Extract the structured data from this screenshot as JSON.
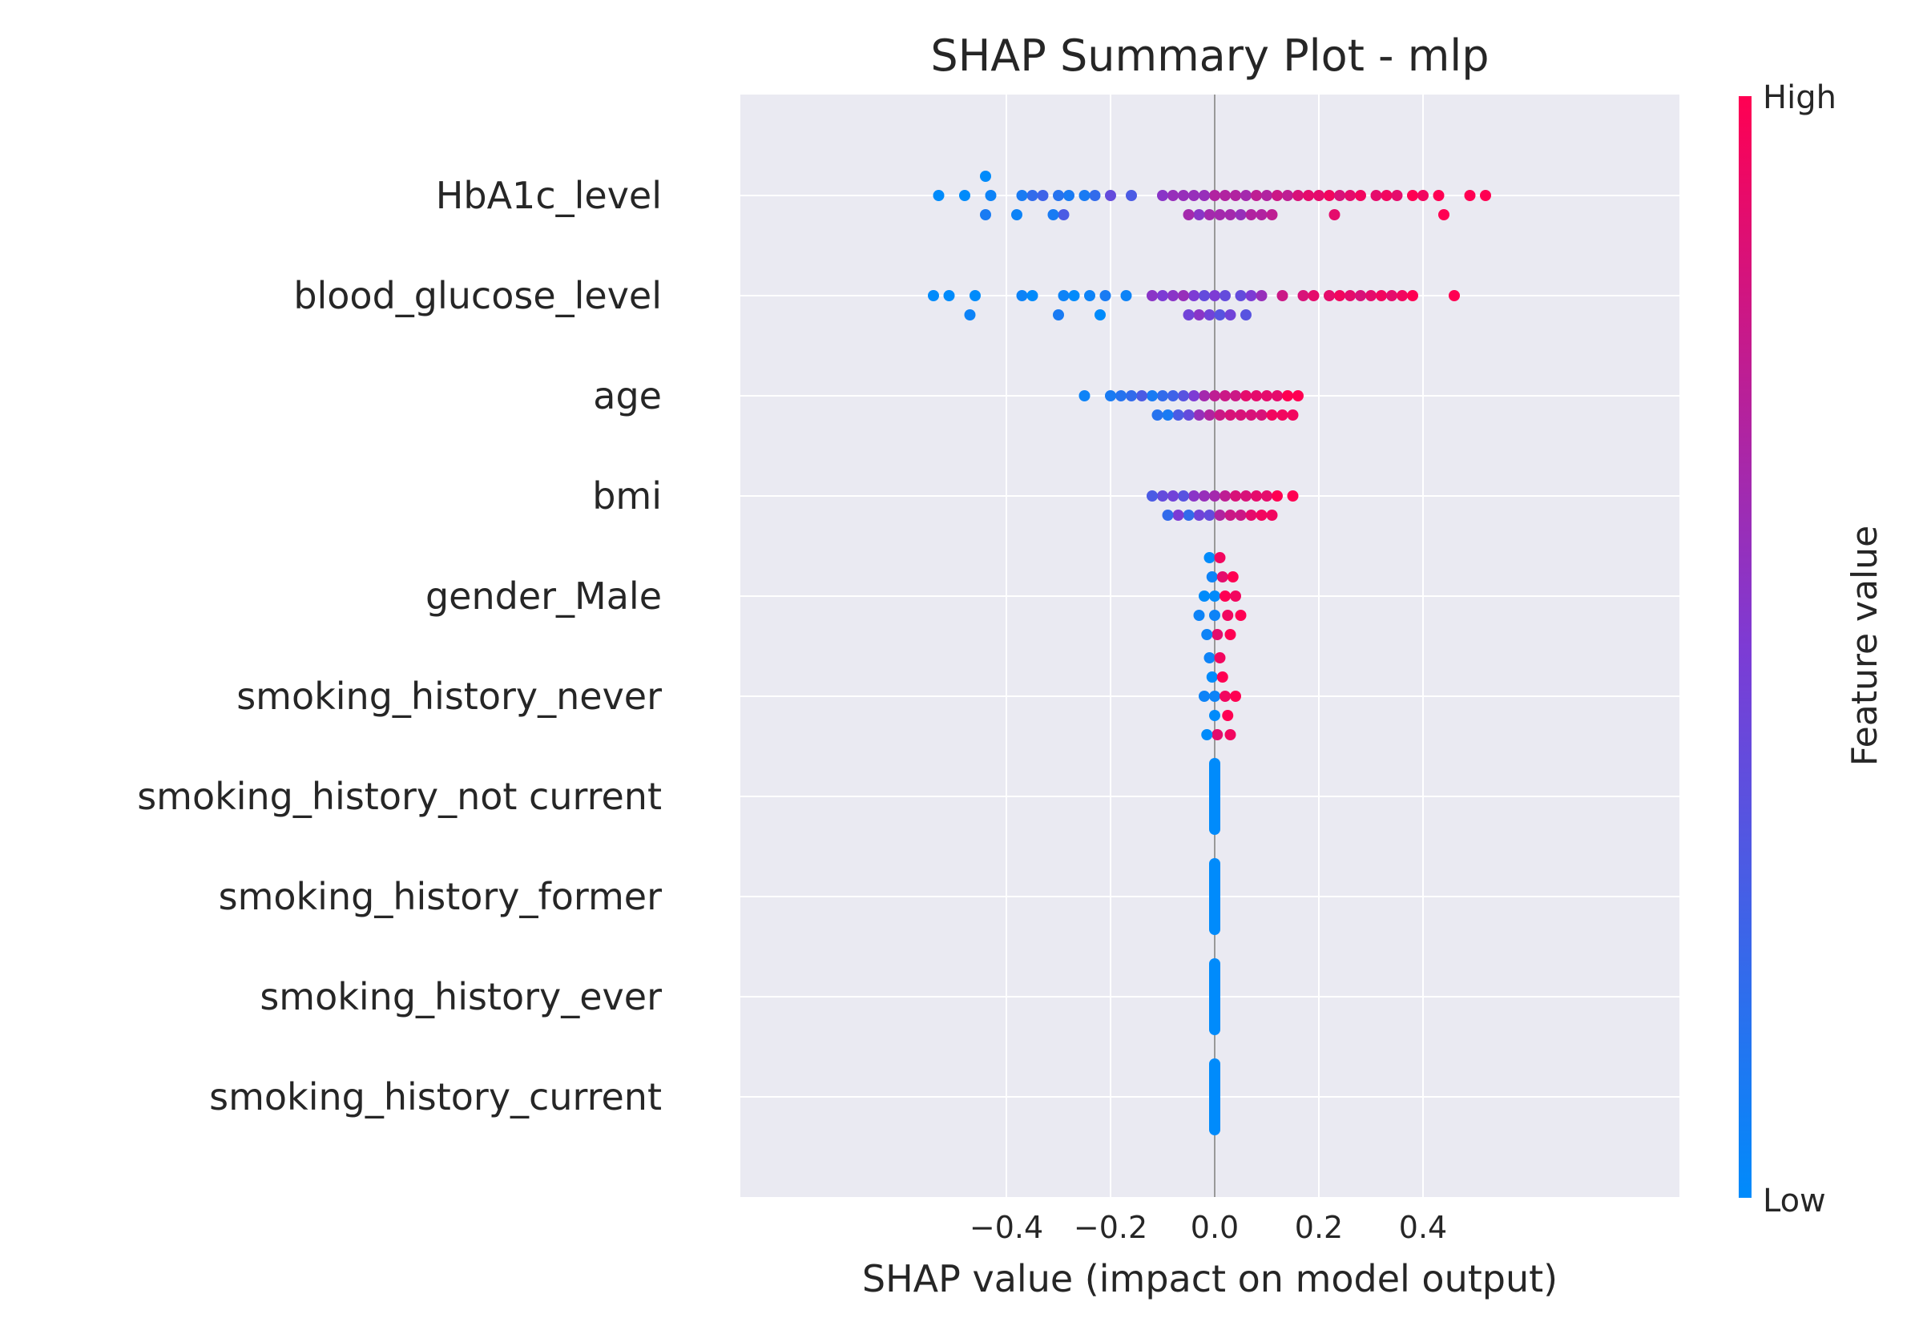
{
  "chart_data": {
    "type": "scatter",
    "subtype": "shap-beeswarm",
    "title": "SHAP Summary Plot - mlp",
    "xlabel": "SHAP value (impact on model output)",
    "ylabel": "",
    "xlim": [
      -0.58,
      0.58
    ],
    "xticks": [
      -0.4,
      -0.2,
      0.0,
      0.2,
      0.4
    ],
    "xtick_labels": [
      "−0.4",
      "−0.2",
      "0.0",
      "0.2",
      "0.4"
    ],
    "grid": true,
    "colorbar": {
      "label": "Feature value",
      "high_label": "High",
      "low_label": "Low",
      "low_color": "#008bfb",
      "high_color": "#ff0052"
    },
    "features": [
      {
        "name": "HbA1c_level",
        "points": [
          [
            -0.53,
            0.0
          ],
          [
            -0.48,
            0.0
          ],
          [
            -0.44,
            0.1
          ],
          [
            -0.44,
            0.0
          ],
          [
            -0.43,
            0.05
          ],
          [
            -0.38,
            0.05
          ],
          [
            -0.37,
            0.1
          ],
          [
            -0.35,
            0.2
          ],
          [
            -0.33,
            0.25
          ],
          [
            -0.31,
            0.1
          ],
          [
            -0.3,
            0.15
          ],
          [
            -0.29,
            0.3
          ],
          [
            -0.28,
            0.1
          ],
          [
            -0.25,
            0.1
          ],
          [
            -0.23,
            0.2
          ],
          [
            -0.2,
            0.4
          ],
          [
            -0.16,
            0.3
          ],
          [
            -0.1,
            0.55
          ],
          [
            -0.08,
            0.6
          ],
          [
            -0.06,
            0.6
          ],
          [
            -0.05,
            0.65
          ],
          [
            -0.04,
            0.6
          ],
          [
            -0.03,
            0.55
          ],
          [
            -0.02,
            0.6
          ],
          [
            -0.01,
            0.65
          ],
          [
            0.0,
            0.7
          ],
          [
            0.01,
            0.65
          ],
          [
            0.02,
            0.7
          ],
          [
            0.03,
            0.65
          ],
          [
            0.04,
            0.7
          ],
          [
            0.05,
            0.6
          ],
          [
            0.06,
            0.65
          ],
          [
            0.07,
            0.7
          ],
          [
            0.08,
            0.75
          ],
          [
            0.09,
            0.7
          ],
          [
            0.1,
            0.7
          ],
          [
            0.11,
            0.75
          ],
          [
            0.12,
            0.8
          ],
          [
            0.14,
            0.75
          ],
          [
            0.16,
            0.85
          ],
          [
            0.18,
            0.9
          ],
          [
            0.2,
            0.9
          ],
          [
            0.22,
            0.95
          ],
          [
            0.23,
            0.9
          ],
          [
            0.24,
            0.85
          ],
          [
            0.26,
            0.9
          ],
          [
            0.28,
            0.95
          ],
          [
            0.31,
            0.9
          ],
          [
            0.33,
            0.95
          ],
          [
            0.35,
            0.9
          ],
          [
            0.38,
            1.0
          ],
          [
            0.4,
            0.95
          ],
          [
            0.43,
            1.0
          ],
          [
            0.44,
            1.0
          ],
          [
            0.49,
            1.0
          ],
          [
            0.52,
            1.0
          ]
        ]
      },
      {
        "name": "blood_glucose_level",
        "points": [
          [
            -0.54,
            0.0
          ],
          [
            -0.51,
            0.0
          ],
          [
            -0.47,
            0.05
          ],
          [
            -0.46,
            0.0
          ],
          [
            -0.37,
            0.05
          ],
          [
            -0.35,
            0.0
          ],
          [
            -0.3,
            0.1
          ],
          [
            -0.29,
            0.05
          ],
          [
            -0.27,
            0.0
          ],
          [
            -0.24,
            0.05
          ],
          [
            -0.22,
            0.0
          ],
          [
            -0.21,
            0.1
          ],
          [
            -0.17,
            0.05
          ],
          [
            -0.12,
            0.55
          ],
          [
            -0.1,
            0.5
          ],
          [
            -0.08,
            0.55
          ],
          [
            -0.06,
            0.6
          ],
          [
            -0.05,
            0.45
          ],
          [
            -0.04,
            0.5
          ],
          [
            -0.03,
            0.55
          ],
          [
            -0.02,
            0.4
          ],
          [
            -0.01,
            0.45
          ],
          [
            0.0,
            0.5
          ],
          [
            0.01,
            0.35
          ],
          [
            0.02,
            0.4
          ],
          [
            0.03,
            0.45
          ],
          [
            0.05,
            0.4
          ],
          [
            0.06,
            0.35
          ],
          [
            0.07,
            0.5
          ],
          [
            0.09,
            0.6
          ],
          [
            0.13,
            0.8
          ],
          [
            0.17,
            0.85
          ],
          [
            0.19,
            0.9
          ],
          [
            0.22,
            0.9
          ],
          [
            0.24,
            0.95
          ],
          [
            0.26,
            0.9
          ],
          [
            0.28,
            0.85
          ],
          [
            0.3,
            0.9
          ],
          [
            0.32,
            0.95
          ],
          [
            0.34,
            0.9
          ],
          [
            0.36,
            0.95
          ],
          [
            0.38,
            1.0
          ],
          [
            0.46,
            1.0
          ]
        ]
      },
      {
        "name": "age",
        "points": [
          [
            -0.25,
            0.05
          ],
          [
            -0.2,
            0.1
          ],
          [
            -0.18,
            0.15
          ],
          [
            -0.16,
            0.2
          ],
          [
            -0.14,
            0.3
          ],
          [
            -0.12,
            0.1
          ],
          [
            -0.11,
            0.15
          ],
          [
            -0.1,
            0.2
          ],
          [
            -0.09,
            0.1
          ],
          [
            -0.08,
            0.25
          ],
          [
            -0.07,
            0.3
          ],
          [
            -0.06,
            0.35
          ],
          [
            -0.05,
            0.4
          ],
          [
            -0.04,
            0.5
          ],
          [
            -0.03,
            0.6
          ],
          [
            -0.02,
            0.65
          ],
          [
            -0.01,
            0.7
          ],
          [
            0.0,
            0.75
          ],
          [
            0.01,
            0.8
          ],
          [
            0.02,
            0.8
          ],
          [
            0.03,
            0.85
          ],
          [
            0.04,
            0.8
          ],
          [
            0.05,
            0.85
          ],
          [
            0.06,
            0.9
          ],
          [
            0.07,
            0.85
          ],
          [
            0.08,
            0.9
          ],
          [
            0.09,
            0.85
          ],
          [
            0.1,
            0.9
          ],
          [
            0.11,
            0.95
          ],
          [
            0.12,
            0.9
          ],
          [
            0.13,
            0.95
          ],
          [
            0.14,
            1.0
          ],
          [
            0.15,
            0.95
          ],
          [
            0.16,
            1.0
          ]
        ]
      },
      {
        "name": "bmi",
        "points": [
          [
            -0.12,
            0.3
          ],
          [
            -0.1,
            0.4
          ],
          [
            -0.09,
            0.2
          ],
          [
            -0.08,
            0.45
          ],
          [
            -0.07,
            0.5
          ],
          [
            -0.06,
            0.35
          ],
          [
            -0.05,
            0.2
          ],
          [
            -0.04,
            0.55
          ],
          [
            -0.03,
            0.45
          ],
          [
            -0.02,
            0.6
          ],
          [
            -0.01,
            0.4
          ],
          [
            0.0,
            0.65
          ],
          [
            0.01,
            0.7
          ],
          [
            0.02,
            0.75
          ],
          [
            0.03,
            0.8
          ],
          [
            0.04,
            0.85
          ],
          [
            0.05,
            0.8
          ],
          [
            0.06,
            0.85
          ],
          [
            0.07,
            0.9
          ],
          [
            0.08,
            0.9
          ],
          [
            0.09,
            0.95
          ],
          [
            0.1,
            0.9
          ],
          [
            0.11,
            0.95
          ],
          [
            0.12,
            1.0
          ],
          [
            0.15,
            1.0
          ]
        ]
      },
      {
        "name": "gender_Male",
        "points": [
          [
            -0.03,
            0.05
          ],
          [
            -0.02,
            0.0
          ],
          [
            -0.015,
            0.05
          ],
          [
            -0.01,
            0.0
          ],
          [
            -0.005,
            0.05
          ],
          [
            0.0,
            0.0
          ],
          [
            0.0,
            0.05
          ],
          [
            0.005,
            0.9
          ],
          [
            0.01,
            0.95
          ],
          [
            0.015,
            0.9
          ],
          [
            0.02,
            1.0
          ],
          [
            0.025,
            0.95
          ],
          [
            0.03,
            1.0
          ],
          [
            0.035,
            1.0
          ],
          [
            0.04,
            0.95
          ],
          [
            0.05,
            1.0
          ]
        ]
      },
      {
        "name": "smoking_history_never",
        "points": [
          [
            -0.02,
            0.05
          ],
          [
            -0.015,
            0.0
          ],
          [
            -0.01,
            0.05
          ],
          [
            -0.005,
            0.0
          ],
          [
            0.0,
            0.05
          ],
          [
            0.0,
            0.0
          ],
          [
            0.005,
            0.9
          ],
          [
            0.01,
            0.95
          ],
          [
            0.015,
            1.0
          ],
          [
            0.02,
            0.95
          ],
          [
            0.025,
            1.0
          ],
          [
            0.03,
            0.95
          ],
          [
            0.04,
            1.0
          ]
        ]
      },
      {
        "name": "smoking_history_not current",
        "points": [
          [
            0.0,
            0.0
          ]
        ]
      },
      {
        "name": "smoking_history_former",
        "points": [
          [
            0.0,
            0.0
          ]
        ]
      },
      {
        "name": "smoking_history_ever",
        "points": [
          [
            0.0,
            0.0
          ]
        ]
      },
      {
        "name": "smoking_history_current",
        "points": [
          [
            0.0,
            0.0
          ]
        ]
      }
    ]
  }
}
